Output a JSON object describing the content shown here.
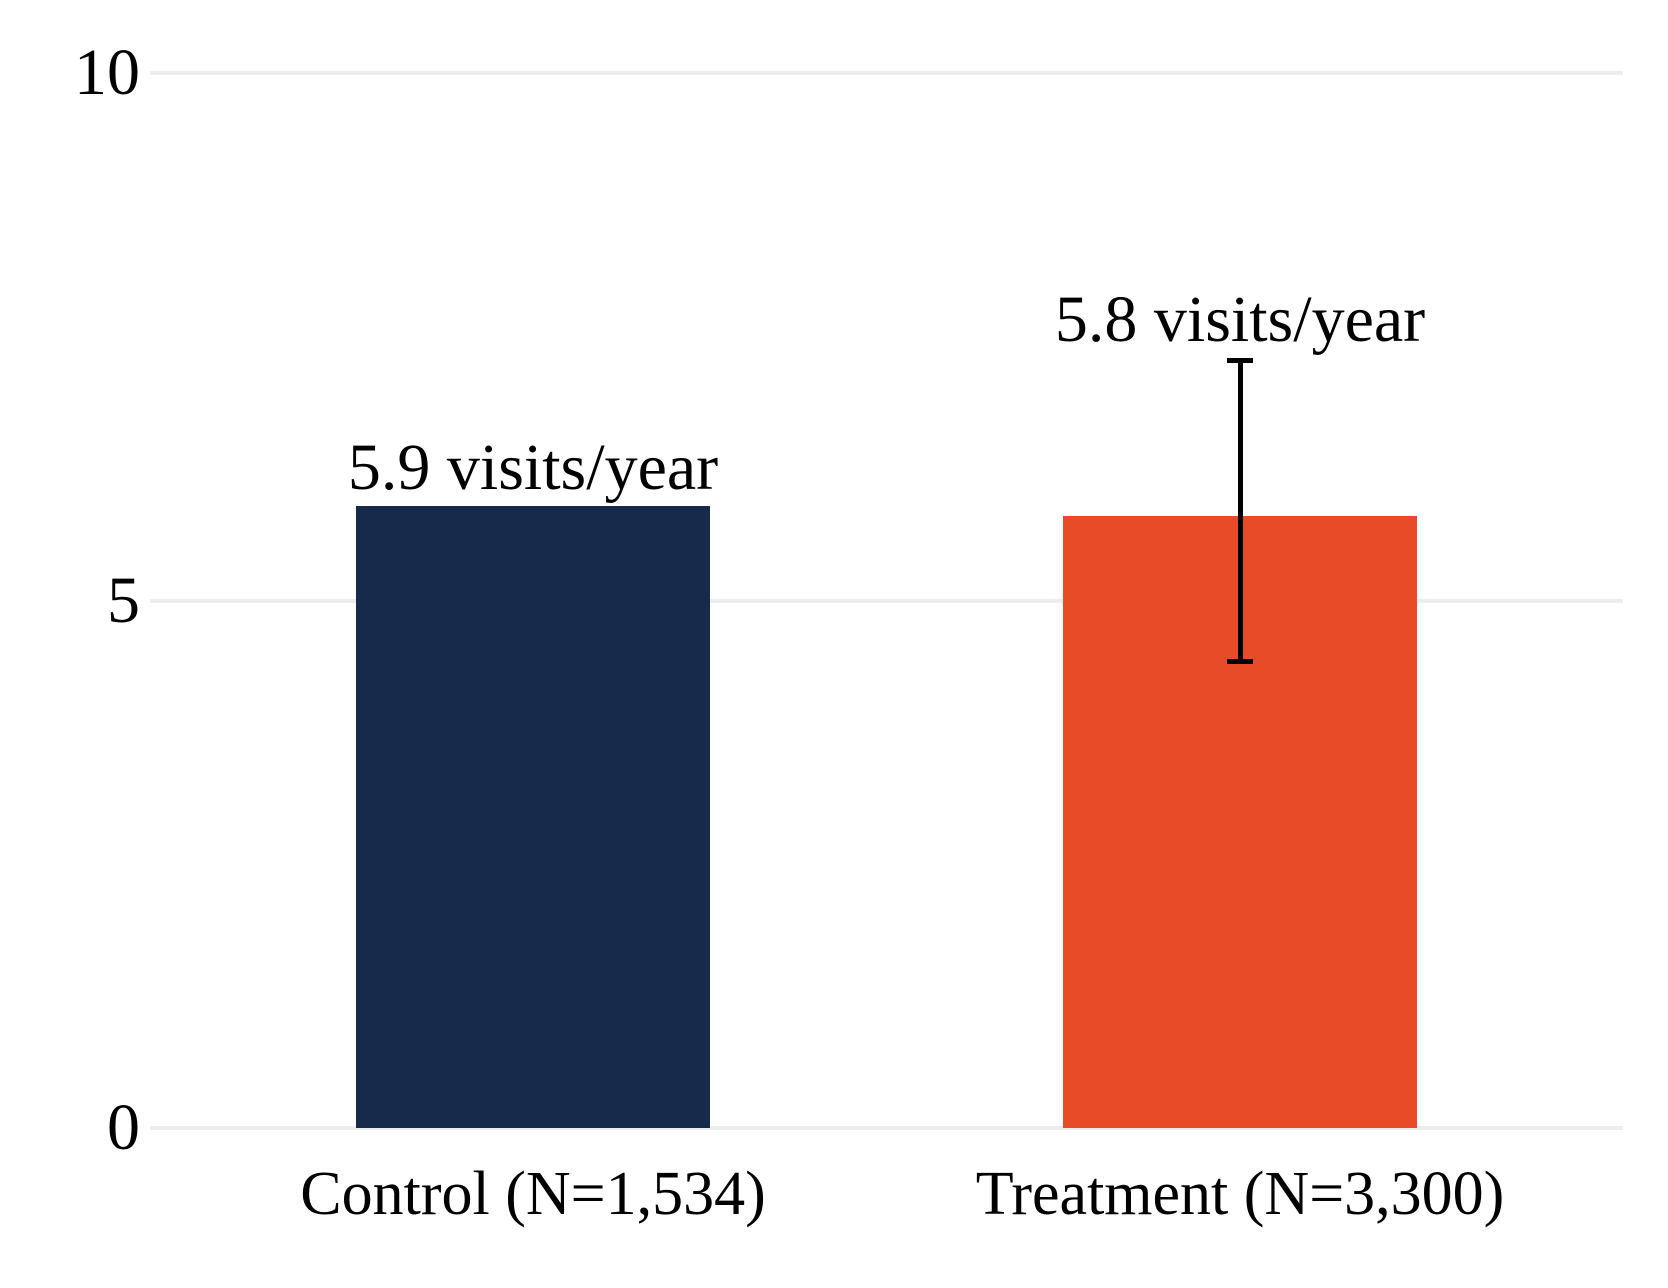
{
  "chart_data": {
    "type": "bar",
    "title": "",
    "xlabel": "",
    "ylabel": "",
    "categories": [
      "Control (N=1,534)",
      "Treatment (N=3,300)"
    ],
    "values": [
      5.9,
      5.8
    ],
    "value_labels": [
      "5.9 visits/year",
      "5.8 visits/year"
    ],
    "bar_colors": [
      "#172a4c",
      "#e74b27"
    ],
    "error_bar": {
      "category_index": 1,
      "low": 4.4,
      "high": 7.3,
      "color": "#000000"
    },
    "ylim": [
      0,
      10
    ],
    "yticks": [
      0,
      5,
      10
    ],
    "ytick_labels": [
      "0",
      "5",
      "10"
    ],
    "grid": true,
    "gridline_color": "#ededed",
    "background_color": "#ffffff",
    "text_color": "#000000",
    "legend": "none"
  }
}
